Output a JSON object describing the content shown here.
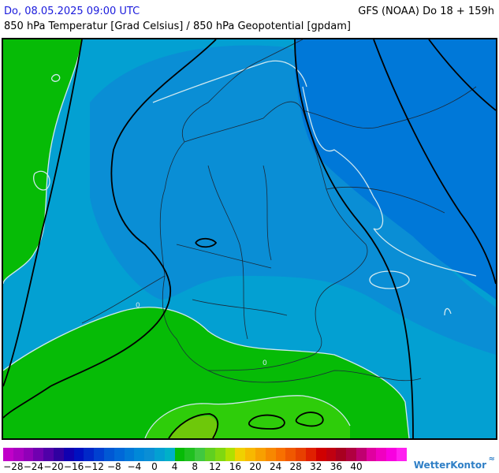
{
  "header": {
    "date_time": "Do, 08.05.2025 09:00 UTC",
    "model_run": "GFS (NOAA) Do 18 + 159h",
    "title": "850 hPa Temperatur [Grad Celsius] / 850 hPa Geopotential [gpdam]"
  },
  "map": {
    "region": "Deutschland",
    "colors": {
      "sea_cyan": "#03a0d2",
      "light_blue": "#0a8ed5",
      "mid_blue": "#0078d8",
      "green": "#06bb06",
      "bright_green": "#2ecd0a",
      "yellow_green": "#6ec80a",
      "isotherm": "#cfe8ef",
      "geopotential": "#000000",
      "border": "#1b2a3a"
    },
    "isotherm_labels": [
      "0",
      "0"
    ]
  },
  "legend": {
    "swatches": [
      "#c000c8",
      "#a800c0",
      "#9000b8",
      "#7000b0",
      "#5000a8",
      "#3000a0",
      "#1000b0",
      "#0010c0",
      "#0028c8",
      "#0040d0",
      "#0058d4",
      "#0068d8",
      "#0078d8",
      "#0088d8",
      "#0a8ed5",
      "#03a0d2",
      "#00b0c8",
      "#06bb06",
      "#20c020",
      "#40c840",
      "#60d020",
      "#80d810",
      "#b0e000",
      "#f0d000",
      "#f8b800",
      "#f8a000",
      "#f88800",
      "#f87000",
      "#f05800",
      "#e84000",
      "#e02000",
      "#d00000",
      "#c00010",
      "#a80020",
      "#b00040",
      "#c00070",
      "#e000a0",
      "#f000c0",
      "#f800e0",
      "#ff20f0"
    ],
    "labels": [
      "-28",
      "-24",
      "-20",
      "-16",
      "-12",
      "-8",
      "-4",
      "0",
      "4",
      "8",
      "12",
      "16",
      "20",
      "24",
      "28",
      "32",
      "36",
      "40"
    ]
  },
  "brand": {
    "name": "WetterKontor"
  }
}
